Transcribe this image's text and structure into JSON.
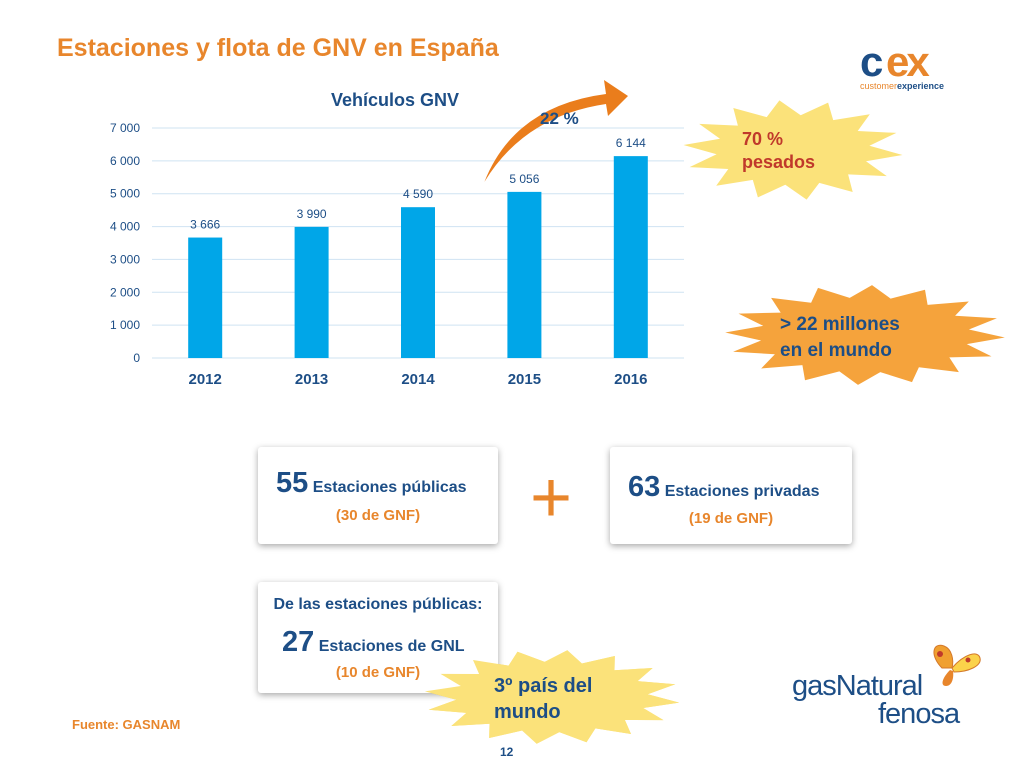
{
  "slide": {
    "title": "Estaciones y flota de GNV en España",
    "source": "Fuente: GASNAM",
    "page_number": "12"
  },
  "chart_data": {
    "type": "bar",
    "title": "Vehículos GNV",
    "categories": [
      "2012",
      "2013",
      "2014",
      "2015",
      "2016"
    ],
    "values": [
      3666,
      3990,
      4590,
      5056,
      6144
    ],
    "value_labels": [
      "3 666",
      "3 990",
      "4 590",
      "5 056",
      "6 144"
    ],
    "yticks": [
      "0",
      "1 000",
      "2 000",
      "3 000",
      "4 000",
      "5 000",
      "6 000",
      "7 000"
    ],
    "ylim": [
      0,
      7000
    ],
    "grid": true,
    "growth_annotation": "22 %",
    "bar_color": "#00a6e8"
  },
  "callouts": {
    "heavy": "70 %\npesados",
    "world": "> 22 millones\nen el mundo",
    "rank": "3º país del\nmundo"
  },
  "stations": {
    "public_count": "55",
    "public_label": "Estaciones públicas",
    "public_gnf": "(30 de GNF)",
    "plus": "+",
    "private_count": "63",
    "private_label": "Estaciones privadas",
    "private_gnf": "(19 de GNF)",
    "gnl_header": "De las estaciones públicas:",
    "gnl_count": "27",
    "gnl_label": "Estaciones de GNL",
    "gnl_gnf": "(10 de GNF)"
  },
  "logos": {
    "cex_mark": "cex",
    "cex_tagline_1": "customer",
    "cex_tagline_2": "experience",
    "gn_line1": "gasNatural",
    "gn_line2": "fenosa"
  },
  "colors": {
    "accent": "#e8862c",
    "navy": "#1d4e86",
    "bar": "#00a6e8",
    "burst_light": "#fbe27a",
    "burst_orange": "#f5a33c"
  }
}
